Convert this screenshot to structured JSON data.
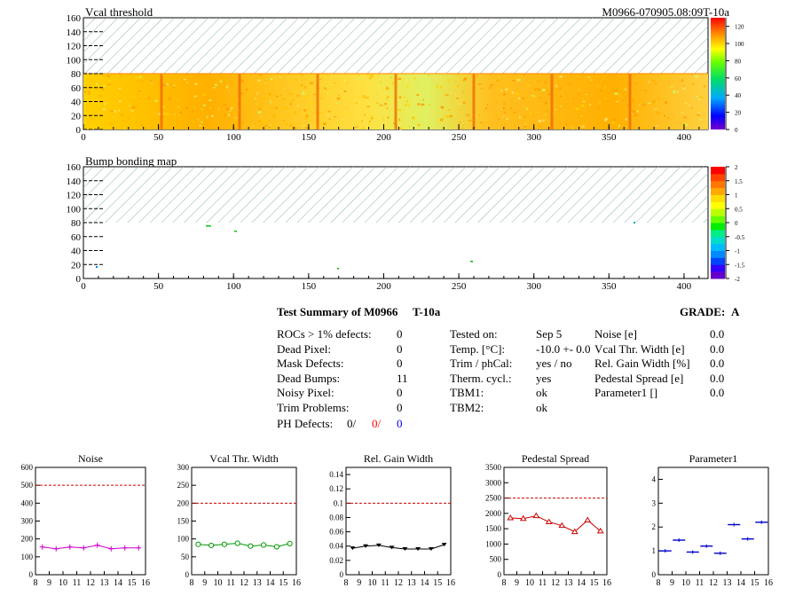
{
  "maps": {
    "module_label": "M0966-070905.08:09T-10a",
    "vcal": {
      "title": "Vcal threshold",
      "xticks": [
        "0",
        "50",
        "100",
        "150",
        "200",
        "250",
        "300",
        "350",
        "400"
      ],
      "yticks": [
        "0",
        "20",
        "40",
        "60",
        "80",
        "100",
        "120",
        "140",
        "160"
      ],
      "zticks": [
        "0",
        "20",
        "40",
        "60",
        "80",
        "100",
        "120"
      ],
      "xrange": [
        0,
        416
      ],
      "yrange": [
        0,
        160
      ],
      "zrange": [
        0,
        130
      ]
    },
    "bump": {
      "title": "Bump bonding map",
      "xticks": [
        "0",
        "50",
        "100",
        "150",
        "200",
        "250",
        "300",
        "350",
        "400"
      ],
      "yticks": [
        "0",
        "20",
        "40",
        "60",
        "80",
        "100",
        "120",
        "140",
        "160"
      ],
      "zticks": [
        "-2",
        "-1.5",
        "-1",
        "-0.5",
        "0",
        "0.5",
        "1",
        "1.5",
        "2"
      ],
      "xrange": [
        0,
        416
      ],
      "yrange": [
        0,
        160
      ],
      "zrange": [
        -2,
        2
      ]
    }
  },
  "summary": {
    "title": "Test Summary of M0966",
    "tag": "T-10a",
    "grade_label": "GRADE:",
    "grade": "A",
    "col1": [
      {
        "label": "ROCs > 1% defects:",
        "value": "0"
      },
      {
        "label": "Dead Pixel:",
        "value": "0"
      },
      {
        "label": "Mask Defects:",
        "value": "0"
      },
      {
        "label": "Dead Bumps:",
        "value": "11"
      },
      {
        "label": "Noisy Pixel:",
        "value": "0"
      },
      {
        "label": "Trim Problems:",
        "value": "0"
      }
    ],
    "ph_label": "PH Defects:",
    "ph_values": [
      "0/",
      "0/",
      "0"
    ],
    "ph_colors": [
      "#000000",
      "#ff0000",
      "#0000ff"
    ],
    "col2": [
      {
        "label": "Tested on:",
        "value": "Sep 5"
      },
      {
        "label": "Temp. [°C]:",
        "value": "-10.0 +- 0.0"
      },
      {
        "label": "Trim / phCal:",
        "value": "yes / no"
      },
      {
        "label": "Therm. cycl.:",
        "value": "yes"
      },
      {
        "label": "TBM1:",
        "value": "ok"
      },
      {
        "label": "TBM2:",
        "value": "ok"
      }
    ],
    "col3": [
      {
        "label": "Noise [e]",
        "value": "0.0"
      },
      {
        "label": "Vcal Thr. Width [e]",
        "value": "0.0"
      },
      {
        "label": "Rel. Gain Width [%]",
        "value": "0.0"
      },
      {
        "label": "Pedestal Spread [e]",
        "value": "0.0"
      },
      {
        "label": "Parameter1 []",
        "value": "0.0"
      }
    ]
  },
  "chart_data": [
    {
      "type": "line",
      "title": "Noise",
      "color": "#cc00cc",
      "marker": "cross",
      "x": [
        8,
        9,
        10,
        11,
        12,
        13,
        14,
        15
      ],
      "values": [
        155,
        145,
        155,
        150,
        165,
        145,
        150,
        150
      ],
      "ylim": [
        0,
        600
      ],
      "xlim": [
        8,
        16
      ],
      "limit": 500,
      "yticks": [
        "0",
        "100",
        "200",
        "300",
        "400",
        "500",
        "600"
      ],
      "xticks": [
        "8",
        "9",
        "10",
        "11",
        "12",
        "13",
        "14",
        "15",
        "16"
      ]
    },
    {
      "type": "line",
      "title": "Vcal Thr. Width",
      "color": "#009900",
      "marker": "circle",
      "x": [
        8,
        9,
        10,
        11,
        12,
        13,
        14,
        15
      ],
      "values": [
        85,
        82,
        85,
        88,
        80,
        83,
        78,
        87
      ],
      "ylim": [
        0,
        300
      ],
      "xlim": [
        8,
        16
      ],
      "limit": 200,
      "yticks": [
        "0",
        "50",
        "100",
        "150",
        "200",
        "250",
        "300"
      ],
      "xticks": [
        "8",
        "9",
        "10",
        "11",
        "12",
        "13",
        "14",
        "15",
        "16"
      ]
    },
    {
      "type": "line",
      "title": "Rel. Gain Width",
      "color": "#000000",
      "marker": "triangle-down",
      "x": [
        8,
        9,
        10,
        11,
        12,
        13,
        14,
        15
      ],
      "values": [
        0.037,
        0.04,
        0.041,
        0.038,
        0.036,
        0.036,
        0.036,
        0.042
      ],
      "ylim": [
        0,
        0.15
      ],
      "xlim": [
        8,
        16
      ],
      "limit": 0.1,
      "yticks": [
        "0",
        "0.02",
        "0.04",
        "0.06",
        "0.08",
        "0.1",
        "0.12",
        "0.14"
      ],
      "xticks": [
        "8",
        "9",
        "10",
        "11",
        "12",
        "13",
        "14",
        "15",
        "16"
      ]
    },
    {
      "type": "line",
      "title": "Pedestal Spread",
      "color": "#cc0000",
      "marker": "triangle",
      "x": [
        8,
        9,
        10,
        11,
        12,
        13,
        14,
        15
      ],
      "values": [
        1850,
        1830,
        1920,
        1720,
        1600,
        1400,
        1780,
        1420
      ],
      "ylim": [
        0,
        3500
      ],
      "xlim": [
        8,
        16
      ],
      "limit": 2500,
      "yticks": [
        "0",
        "500",
        "1000",
        "1500",
        "2000",
        "2500",
        "3000",
        "3500"
      ],
      "xticks": [
        "8",
        "9",
        "10",
        "11",
        "12",
        "13",
        "14",
        "15",
        "16"
      ]
    },
    {
      "type": "scatter",
      "title": "Parameter1",
      "color": "#0000cc",
      "marker": "hbar",
      "x": [
        8,
        9,
        10,
        11,
        12,
        13,
        14,
        15
      ],
      "values": [
        1.0,
        1.45,
        0.95,
        1.2,
        0.9,
        2.1,
        1.5,
        2.2
      ],
      "ylim": [
        0,
        4.5
      ],
      "xlim": [
        8,
        16
      ],
      "limit": null,
      "yticks": [
        "0",
        "1",
        "2",
        "3",
        "4"
      ],
      "xticks": [
        "8",
        "9",
        "10",
        "11",
        "12",
        "13",
        "14",
        "15",
        "16"
      ]
    }
  ]
}
